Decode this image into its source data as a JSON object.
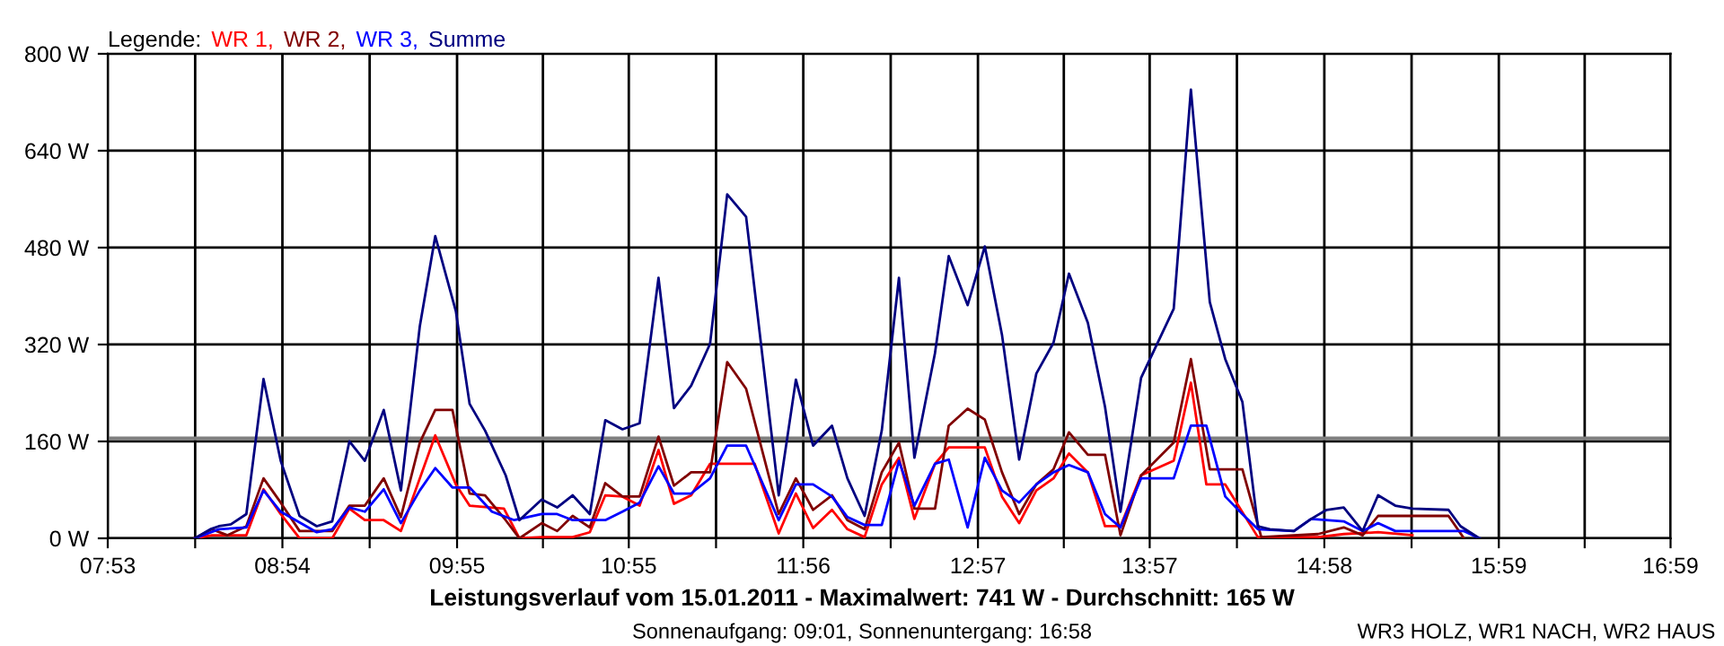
{
  "chart_data": {
    "type": "line",
    "title": "Leistungsverlauf vom 15.01.2011 - Maximalwert: 741 W - Durchschnitt: 165 W",
    "subtitle": "Sonnenaufgang: 09:01, Sonnenuntergang: 16:58",
    "annotations": [
      "WR3 HOLZ, WR1 NACH, WR2 HAUS"
    ],
    "legend_title": "Legende:",
    "legend": "top left",
    "grid": true,
    "marker": "none",
    "line_style": "solid",
    "xlim": [
      7.883,
      16.983
    ],
    "ylim": [
      0,
      800
    ],
    "xticks": [
      {
        "value": 7.883,
        "label": "07:53"
      },
      {
        "value": 8.392,
        "label": null
      },
      {
        "value": 8.9,
        "label": "08:54"
      },
      {
        "value": 9.408,
        "label": null
      },
      {
        "value": 9.917,
        "label": "09:55"
      },
      {
        "value": 10.417,
        "label": null
      },
      {
        "value": 10.917,
        "label": "10:55"
      },
      {
        "value": 11.425,
        "label": null
      },
      {
        "value": 11.933,
        "label": "11:56"
      },
      {
        "value": 12.442,
        "label": null
      },
      {
        "value": 12.95,
        "label": "12:57"
      },
      {
        "value": 13.45,
        "label": null
      },
      {
        "value": 13.95,
        "label": "13:57"
      },
      {
        "value": 14.458,
        "label": null
      },
      {
        "value": 14.967,
        "label": "14:58"
      },
      {
        "value": 15.475,
        "label": null
      },
      {
        "value": 15.983,
        "label": "15:59"
      },
      {
        "value": 16.483,
        "label": null
      },
      {
        "value": 16.983,
        "label": "16:59"
      }
    ],
    "yticks": [
      {
        "value": 0,
        "label": "0 W"
      },
      {
        "value": 160,
        "label": "160 W"
      },
      {
        "value": 320,
        "label": "320 W"
      },
      {
        "value": 480,
        "label": "480 W"
      },
      {
        "value": 640,
        "label": "640 W"
      },
      {
        "value": 800,
        "label": "800 W"
      }
    ],
    "ref_lines": [
      {
        "axis": "y",
        "value": 165,
        "color": "#808080"
      }
    ],
    "series": [
      {
        "name": "WR 1,",
        "color": "#ff0000",
        "x": [
          8.39,
          8.49,
          8.69,
          8.79,
          8.89,
          9.0,
          9.19,
          9.29,
          9.38,
          9.49,
          9.59,
          9.79,
          9.91,
          9.99,
          10.19,
          10.28,
          10.41,
          10.59,
          10.69,
          10.78,
          10.88,
          10.98,
          11.09,
          11.18,
          11.28,
          11.39,
          11.65,
          11.79,
          11.89,
          11.99,
          12.1,
          12.19,
          12.29,
          12.39,
          12.49,
          12.58,
          12.7,
          12.78,
          12.99,
          13.09,
          13.19,
          13.29,
          13.39,
          13.48,
          13.59,
          13.69,
          13.78,
          13.9,
          14.09,
          14.19,
          14.28,
          14.39,
          14.58,
          14.93,
          15.08,
          15.28,
          15.48
        ],
        "values": [
          0,
          5,
          5,
          81,
          40,
          0,
          0,
          49,
          30,
          30,
          12,
          170,
          89,
          54,
          49,
          0,
          2,
          2,
          10,
          71,
          69,
          54,
          146,
          57,
          71,
          123,
          123,
          8,
          74,
          17,
          47,
          15,
          2,
          89,
          133,
          32,
          123,
          150,
          150,
          69,
          25,
          79,
          99,
          140,
          109,
          20,
          20,
          104,
          128,
          257,
          89,
          89,
          2,
          2,
          7,
          10,
          5
        ]
      },
      {
        "name": "WR 2,",
        "color": "#800000",
        "x": [
          8.39,
          8.49,
          8.58,
          8.69,
          8.79,
          8.89,
          9.0,
          9.19,
          9.29,
          9.38,
          9.49,
          9.59,
          9.7,
          9.79,
          9.89,
          9.99,
          10.08,
          10.2,
          10.28,
          10.41,
          10.5,
          10.59,
          10.69,
          10.78,
          10.88,
          10.98,
          11.09,
          11.18,
          11.28,
          11.39,
          11.49,
          11.6,
          11.79,
          11.89,
          11.99,
          12.1,
          12.19,
          12.29,
          12.39,
          12.49,
          12.58,
          12.7,
          12.78,
          12.89,
          12.99,
          13.09,
          13.19,
          13.29,
          13.39,
          13.48,
          13.59,
          13.69,
          13.78,
          13.9,
          14.09,
          14.19,
          14.3,
          14.49,
          14.6,
          14.93,
          15.08,
          15.19,
          15.28,
          15.69,
          15.78
        ],
        "values": [
          0,
          15,
          5,
          20,
          99,
          59,
          12,
          12,
          54,
          54,
          99,
          35,
          158,
          212,
          212,
          74,
          71,
          30,
          0,
          25,
          12,
          37,
          18,
          91,
          69,
          69,
          168,
          87,
          109,
          109,
          291,
          247,
          40,
          99,
          47,
          71,
          30,
          15,
          109,
          158,
          49,
          49,
          186,
          214,
          196,
          109,
          40,
          89,
          114,
          175,
          138,
          138,
          5,
          104,
          158,
          296,
          114,
          114,
          2,
          7,
          18,
          5,
          37,
          37,
          0
        ]
      },
      {
        "name": "WR 3,",
        "color": "#0000ff",
        "x": [
          8.39,
          8.53,
          8.69,
          8.79,
          8.89,
          9.1,
          9.19,
          9.29,
          9.38,
          9.49,
          9.59,
          9.7,
          9.79,
          9.89,
          9.99,
          10.12,
          10.25,
          10.41,
          10.5,
          10.59,
          10.69,
          10.78,
          10.88,
          10.98,
          11.09,
          11.18,
          11.28,
          11.39,
          11.49,
          11.6,
          11.79,
          11.89,
          11.99,
          12.1,
          12.19,
          12.29,
          12.39,
          12.49,
          12.58,
          12.7,
          12.78,
          12.89,
          12.99,
          13.09,
          13.19,
          13.29,
          13.39,
          13.48,
          13.59,
          13.69,
          13.78,
          13.9,
          14.09,
          14.19,
          14.28,
          14.39,
          14.49,
          14.58,
          14.79,
          14.89,
          15.08,
          15.19,
          15.28,
          15.38,
          15.78,
          15.87
        ],
        "values": [
          0,
          15,
          18,
          79,
          44,
          10,
          15,
          51,
          44,
          81,
          25,
          79,
          116,
          84,
          84,
          44,
          30,
          40,
          40,
          30,
          30,
          30,
          44,
          59,
          119,
          74,
          74,
          99,
          153,
          153,
          30,
          89,
          89,
          69,
          35,
          22,
          22,
          128,
          54,
          123,
          130,
          18,
          133,
          79,
          59,
          89,
          109,
          121,
          109,
          40,
          18,
          99,
          99,
          186,
          186,
          69,
          40,
          15,
          12,
          32,
          28,
          12,
          25,
          12,
          12,
          0
        ]
      },
      {
        "name": "Summe",
        "color": "#000080",
        "x": [
          8.39,
          8.48,
          8.53,
          8.6,
          8.69,
          8.79,
          8.89,
          9.0,
          9.1,
          9.19,
          9.29,
          9.38,
          9.49,
          9.59,
          9.7,
          9.79,
          9.91,
          9.99,
          10.08,
          10.2,
          10.28,
          10.41,
          10.5,
          10.59,
          10.69,
          10.78,
          10.88,
          10.98,
          11.09,
          11.18,
          11.28,
          11.39,
          11.49,
          11.6,
          11.79,
          11.89,
          11.99,
          12.1,
          12.19,
          12.29,
          12.39,
          12.49,
          12.58,
          12.7,
          12.78,
          12.89,
          12.99,
          13.09,
          13.19,
          13.29,
          13.39,
          13.48,
          13.59,
          13.69,
          13.78,
          13.9,
          14.09,
          14.19,
          14.3,
          14.39,
          14.49,
          14.58,
          14.65,
          14.79,
          14.89,
          14.98,
          15.08,
          15.19,
          15.28,
          15.38,
          15.48,
          15.69,
          15.76,
          15.87
        ],
        "values": [
          0,
          15,
          20,
          23,
          40,
          263,
          128,
          37,
          20,
          28,
          160,
          128,
          212,
          79,
          350,
          499,
          375,
          222,
          178,
          104,
          30,
          64,
          51,
          71,
          40,
          195,
          180,
          190,
          430,
          215,
          252,
          321,
          568,
          531,
          71,
          262,
          153,
          186,
          99,
          37,
          178,
          430,
          133,
          306,
          466,
          385,
          482,
          336,
          130,
          272,
          323,
          437,
          356,
          217,
          44,
          265,
          379,
          741,
          390,
          296,
          225,
          20,
          15,
          12,
          32,
          47,
          51,
          12,
          71,
          54,
          49,
          47,
          20,
          0
        ]
      }
    ]
  }
}
